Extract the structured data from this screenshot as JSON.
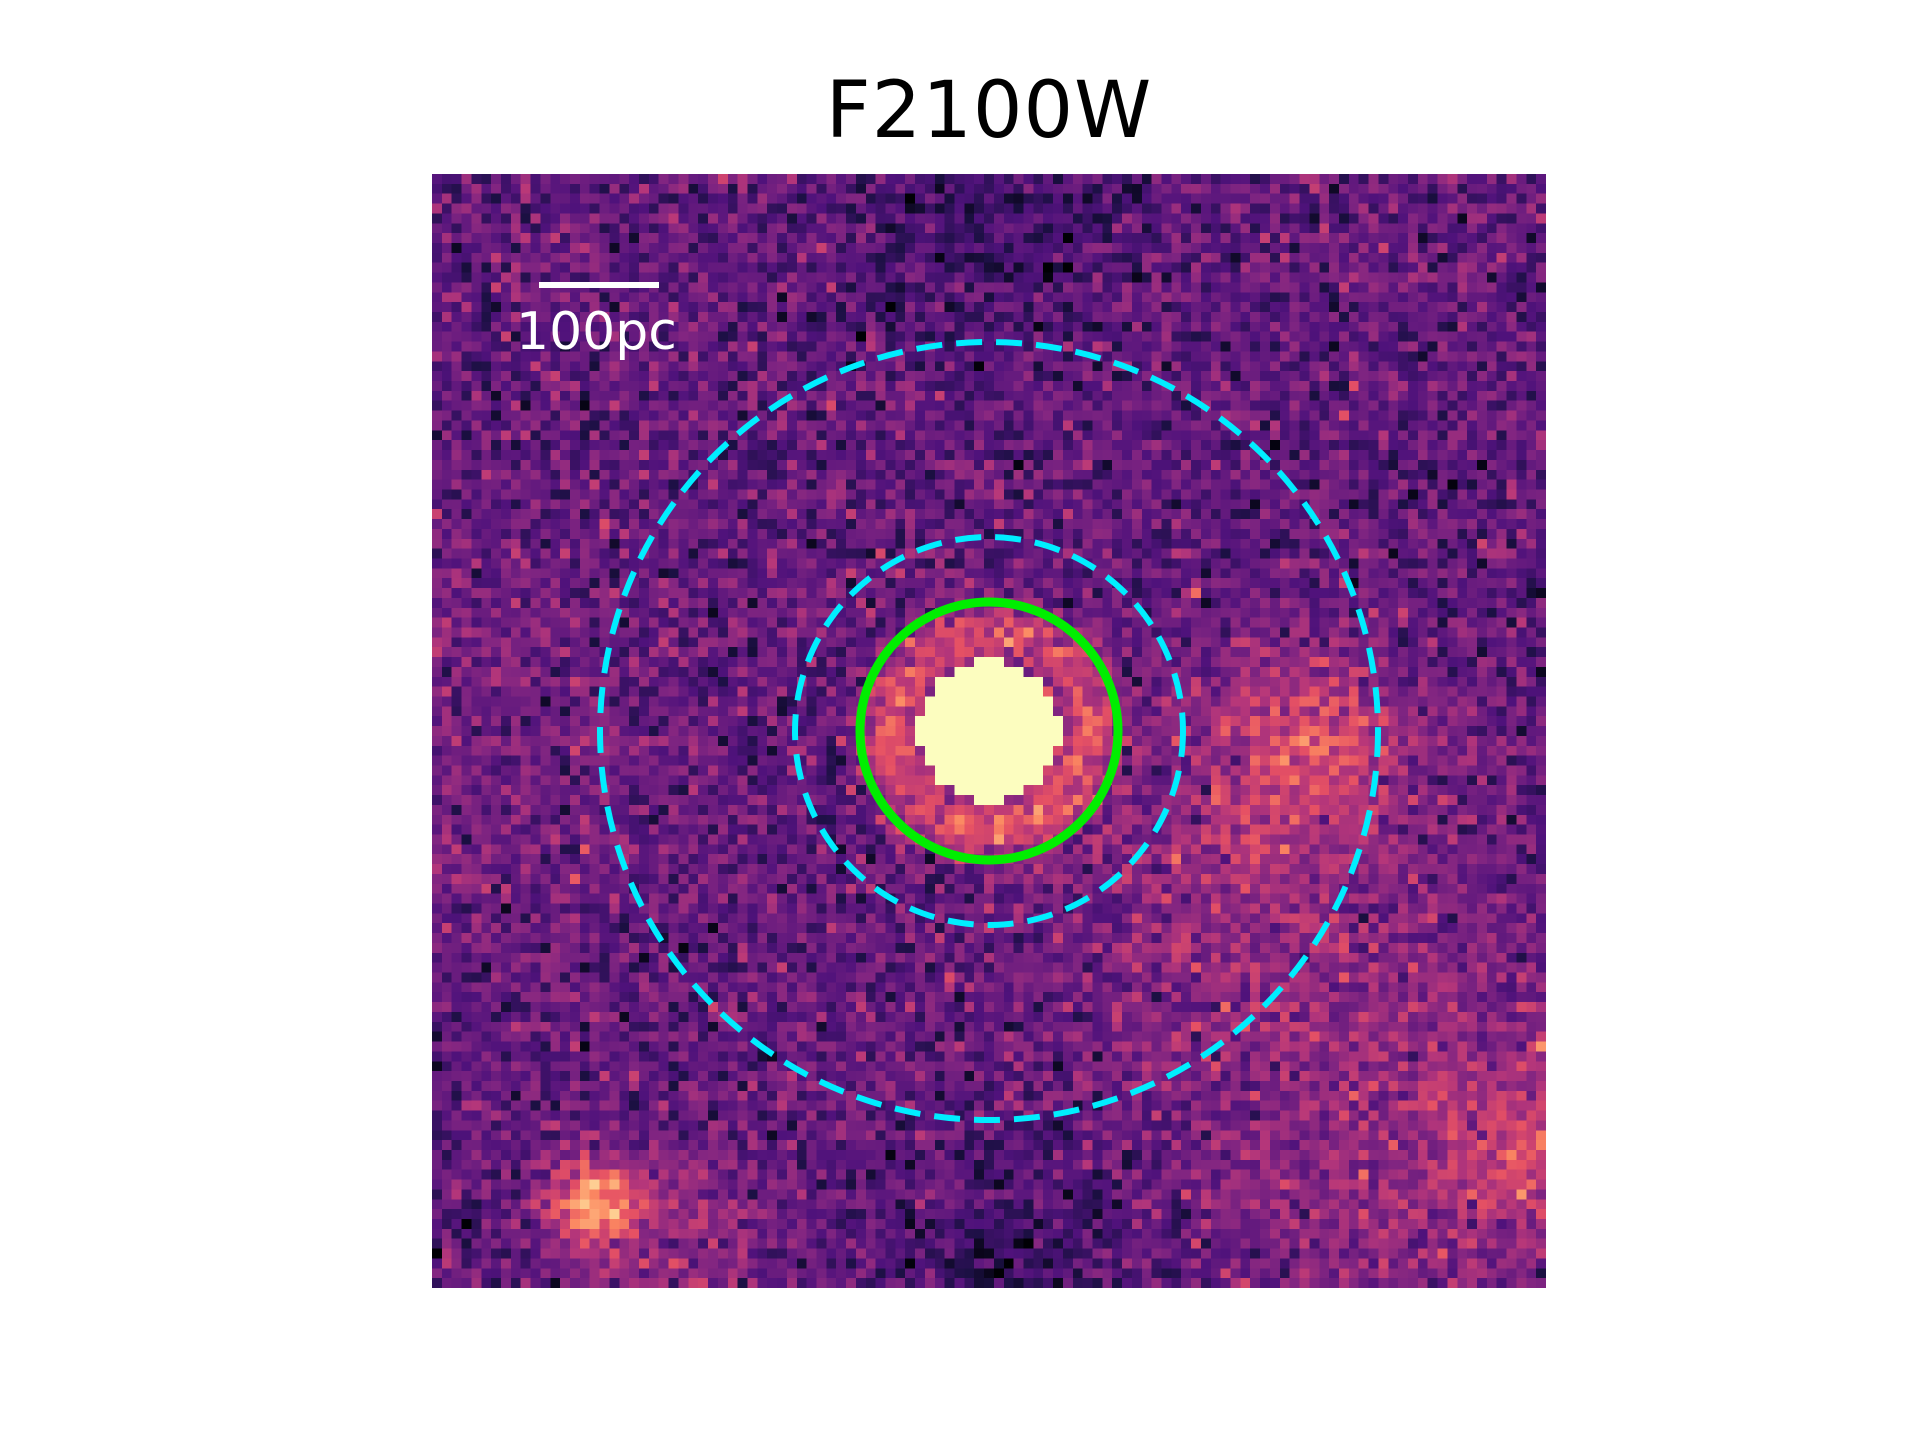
{
  "figure": {
    "title": "F2100W",
    "colormap": "magma",
    "scale_bar": {
      "label": "100pc"
    }
  },
  "apertures": {
    "source": {
      "style": "solid",
      "color": "#00ee00"
    },
    "inner_background": {
      "style": "dashed",
      "color": "#00eeff"
    },
    "outer_background": {
      "style": "dashed",
      "color": "#00eeff"
    }
  },
  "colors": {
    "background": "#ffffff",
    "title": "#000000",
    "scale_bar": "#ffffff"
  }
}
